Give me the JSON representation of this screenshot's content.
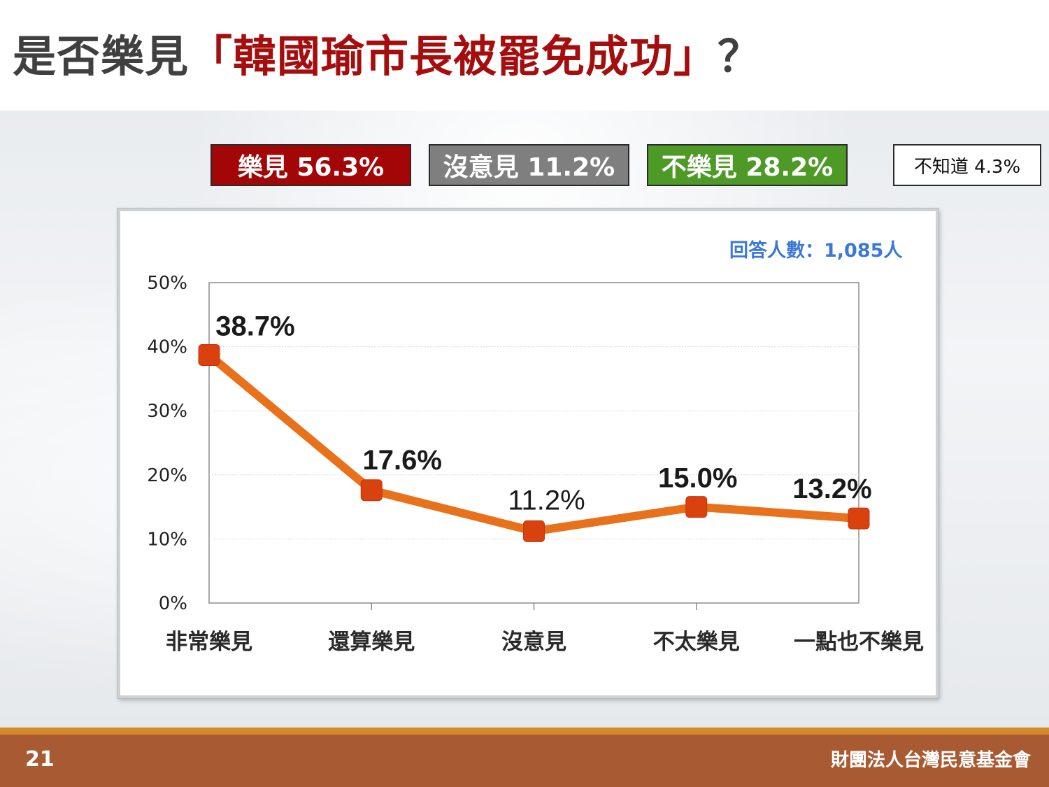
{
  "title": {
    "prefix": "是否樂見",
    "highlight": "「韓國瑜市長被罷免成功」",
    "suffix": "？"
  },
  "summary": {
    "like": "樂見 56.3%",
    "no_opinion": "沒意見 11.2%",
    "dislike": "不樂見 28.2%",
    "dont_know": "不知道 4.3%"
  },
  "sample_size": "回答人數：1,085人",
  "chart_data": {
    "type": "line",
    "categories": [
      "非常樂見",
      "還算樂見",
      "沒意見",
      "不太樂見",
      "一點也不樂見"
    ],
    "values": [
      38.7,
      17.6,
      11.2,
      15.0,
      13.2
    ],
    "data_labels": [
      "38.7%",
      "17.6%",
      "11.2%",
      "15.0%",
      "13.2%"
    ],
    "y_ticks": [
      "0%",
      "10%",
      "20%",
      "30%",
      "40%",
      "50%"
    ],
    "ylim": [
      0,
      50
    ],
    "grid": true,
    "line_color": "#e8711c",
    "marker_color": "#d9420f"
  },
  "footer": {
    "page": "21",
    "org": "財團法人台灣民意基金會"
  }
}
